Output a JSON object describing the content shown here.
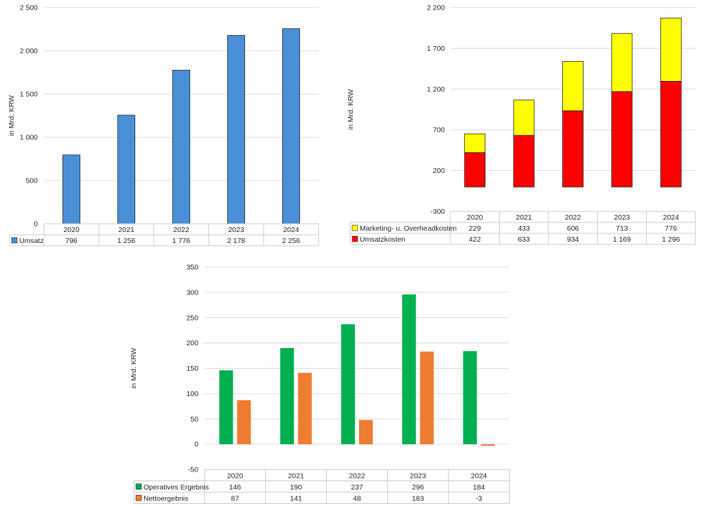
{
  "chart_data": [
    {
      "type": "bar",
      "ylabel": "in Mrd. KRW",
      "ylim": [
        0,
        2500
      ],
      "yticks": [
        "2 500",
        "2 000",
        "1 500",
        "1 000",
        "500",
        "0"
      ],
      "categories": [
        "2020",
        "2021",
        "2022",
        "2023",
        "2024"
      ],
      "series": [
        {
          "name": "Umsatz",
          "color": "#4a90d9",
          "values": [
            796,
            1256,
            1776,
            2178,
            2256
          ],
          "labels": [
            "796",
            "1 256",
            "1 776",
            "2 178",
            "2 256"
          ]
        }
      ],
      "grid": true,
      "legend": "data-table"
    },
    {
      "type": "bar",
      "stacked": true,
      "ylabel": "in Mrd. KRW",
      "ylim": [
        -300,
        2200
      ],
      "yticks": [
        "2 200",
        "1 700",
        "1 200",
        "700",
        "200",
        "-300"
      ],
      "categories": [
        "2020",
        "2021",
        "2022",
        "2023",
        "2024"
      ],
      "series": [
        {
          "name": "Marketing- u. Overheadkosten",
          "color": "#ffff00",
          "values": [
            229,
            433,
            606,
            713,
            776
          ],
          "labels": [
            "229",
            "433",
            "606",
            "713",
            "776"
          ]
        },
        {
          "name": "Umsatzkosten",
          "color": "#ff0000",
          "values": [
            422,
            633,
            934,
            1169,
            1296
          ],
          "labels": [
            "422",
            "633",
            "934",
            "1 169",
            "1 296"
          ]
        }
      ],
      "grid": true,
      "legend": "data-table"
    },
    {
      "type": "bar",
      "ylabel": "in Mrd. KRW",
      "ylim": [
        -50,
        350
      ],
      "yticks": [
        "350",
        "300",
        "250",
        "200",
        "150",
        "100",
        "50",
        "0",
        "-50"
      ],
      "categories": [
        "2020",
        "2021",
        "2022",
        "2023",
        "2024"
      ],
      "series": [
        {
          "name": "Operatives Ergebnis",
          "color": "#00b050",
          "values": [
            146,
            190,
            237,
            296,
            184
          ],
          "labels": [
            "146",
            "190",
            "237",
            "296",
            "184"
          ]
        },
        {
          "name": "Nettoergebnis",
          "color": "#ed7d31",
          "values": [
            87,
            141,
            48,
            183,
            -3
          ],
          "labels": [
            "87",
            "141",
            "48",
            "183",
            "-3"
          ]
        }
      ],
      "grid": true,
      "legend": "data-table"
    }
  ]
}
